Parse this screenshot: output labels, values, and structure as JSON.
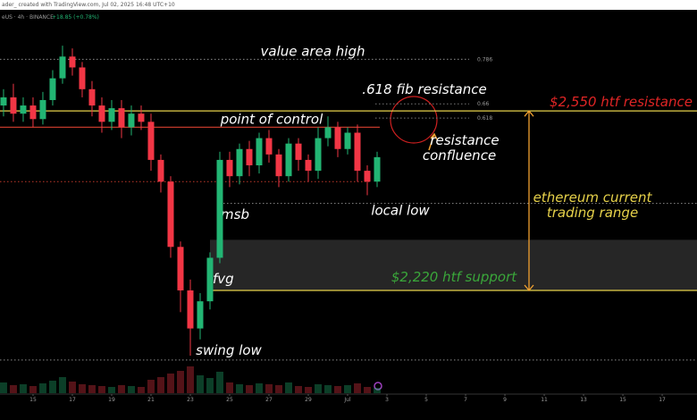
{
  "header": {
    "author": "ader_ created with TradingView.com, Jul 02, 2025 16:48 UTC+10",
    "symbol": "eUS · 4h · BINANCE",
    "change": "+18.85 (+0.78%)"
  },
  "chart_data": {
    "type": "candlestick",
    "x": [
      13.5,
      14,
      14.5,
      15,
      15.5,
      16,
      16.5,
      17,
      17.5,
      18,
      18.5,
      19,
      19.5,
      20,
      20.5,
      21,
      21.5,
      22,
      22.5,
      23,
      23.5,
      24,
      24.5,
      25,
      25.5,
      26,
      26.5,
      27,
      27.5,
      28,
      28.5,
      29,
      29.5,
      30,
      30.5,
      31,
      31.5,
      32,
      32.5
    ],
    "open": [
      2560,
      2575,
      2545,
      2560,
      2535,
      2570,
      2610,
      2650,
      2630,
      2590,
      2560,
      2530,
      2555,
      2520,
      2545,
      2530,
      2460,
      2420,
      2300,
      2220,
      2150,
      2200,
      2280,
      2460,
      2430,
      2480,
      2450,
      2500,
      2470,
      2430,
      2490,
      2460,
      2440,
      2500,
      2520,
      2480,
      2510,
      2440,
      2420
    ],
    "high": [
      2590,
      2600,
      2575,
      2575,
      2585,
      2625,
      2670,
      2665,
      2640,
      2605,
      2575,
      2570,
      2570,
      2560,
      2560,
      2545,
      2470,
      2430,
      2310,
      2240,
      2215,
      2290,
      2475,
      2475,
      2490,
      2495,
      2510,
      2515,
      2480,
      2500,
      2500,
      2470,
      2520,
      2540,
      2530,
      2520,
      2525,
      2450,
      2475
    ],
    "low": [
      2540,
      2530,
      2530,
      2520,
      2525,
      2560,
      2600,
      2615,
      2575,
      2540,
      2510,
      2515,
      2500,
      2505,
      2515,
      2440,
      2400,
      2280,
      2180,
      2100,
      2130,
      2185,
      2270,
      2410,
      2415,
      2430,
      2435,
      2455,
      2410,
      2420,
      2440,
      2420,
      2425,
      2485,
      2465,
      2470,
      2420,
      2395,
      2410
    ],
    "close": [
      2575,
      2545,
      2560,
      2535,
      2570,
      2610,
      2650,
      2630,
      2590,
      2560,
      2530,
      2555,
      2520,
      2545,
      2530,
      2460,
      2420,
      2300,
      2220,
      2150,
      2200,
      2280,
      2460,
      2430,
      2480,
      2450,
      2500,
      2470,
      2430,
      2490,
      2460,
      2440,
      2500,
      2520,
      2480,
      2510,
      2440,
      2420,
      2465
    ],
    "volume": [
      12,
      9,
      10,
      8,
      11,
      14,
      18,
      13,
      10,
      9,
      8,
      7,
      9,
      8,
      7,
      15,
      18,
      22,
      25,
      30,
      20,
      17,
      24,
      12,
      10,
      9,
      11,
      10,
      9,
      12,
      8,
      7,
      10,
      9,
      8,
      9,
      11,
      7,
      6
    ],
    "volume_ylim": [
      0,
      35
    ],
    "up_color": "#22b573",
    "down_color": "#f23645",
    "xlim": [
      13.32,
      48.77
    ],
    "ylim": [
      2031,
      2731
    ],
    "xticks": [
      15,
      17,
      19,
      21,
      23,
      25,
      27,
      29,
      {
        "value": 31,
        "label": "Jul"
      },
      {
        "value": 33,
        "label": "3"
      },
      {
        "value": 35,
        "label": "5"
      },
      {
        "value": 37,
        "label": "7"
      },
      {
        "value": 39,
        "label": "9"
      },
      {
        "value": 41,
        "label": "11"
      },
      {
        "value": 43,
        "label": "13"
      },
      {
        "value": 45,
        "label": "15"
      },
      {
        "value": 47,
        "label": "17"
      }
    ],
    "levels": [
      {
        "label": "value area high",
        "value": 2645,
        "color": "#8a8a8a",
        "style": "dotted",
        "label_color": "#ffffff"
      },
      {
        "label": "point of control",
        "value": 2520,
        "color": "#c0392b",
        "style": "solid",
        "label_color": "#ffffff"
      },
      {
        "label": "$2,550 htf resistance",
        "value": 2550,
        "color": "#e6d14a",
        "style": "solid",
        "label_color": "#e02525"
      },
      {
        "label": "$2,220 htf support",
        "value": 2220,
        "color": "#e6d14a",
        "style": "solid",
        "label_color": "#3aa63a"
      },
      {
        "label": "local low",
        "value": 2380,
        "color": "#8a8a8a",
        "style": "dotted",
        "label_color": "#ffffff"
      },
      {
        "label": "swing low",
        "value": 2092,
        "color": "#8a8a8a",
        "style": "dotted",
        "label_color": "#ffffff"
      },
      {
        "value": 2420,
        "color": "#c0392b",
        "style": "dotted"
      }
    ],
    "fib": {
      "title": ".618 fib resistance",
      "levels": [
        {
          "value": 2645,
          "label": "0.786"
        },
        {
          "value": 2563,
          "label": "0.66"
        },
        {
          "value": 2537,
          "label": "0.618"
        }
      ]
    },
    "zone": {
      "label": "fvg",
      "range": [
        2220,
        2313
      ]
    },
    "notes": [
      {
        "lines": [
          "msb"
        ],
        "color": "#ffffff"
      },
      {
        "lines": [
          "resistance",
          "confluence"
        ],
        "color": "#ffffff"
      },
      {
        "lines": [
          "ethereum current",
          "trading range"
        ],
        "color": "#e6d14a"
      }
    ]
  }
}
